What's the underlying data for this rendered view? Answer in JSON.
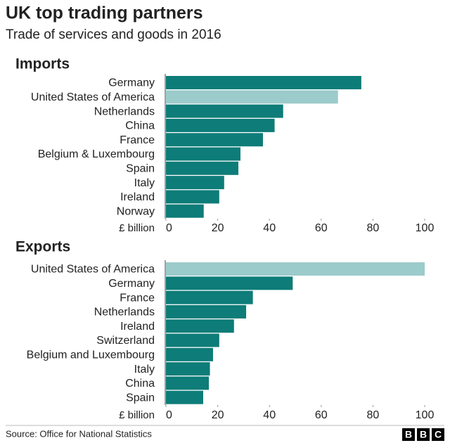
{
  "title": "UK top trading partners",
  "subtitle": "Trade of services and goods in 2016",
  "source": "Source: Office for National Statistics",
  "logo": [
    "B",
    "B",
    "C"
  ],
  "chart_data": [
    {
      "type": "bar",
      "orientation": "horizontal",
      "title": "Imports",
      "categories": [
        "Germany",
        "United States of America",
        "Netherlands",
        "China",
        "France",
        "Belgium & Luxembourg",
        "Spain",
        "Italy",
        "Ireland",
        "Norway"
      ],
      "values": [
        75.5,
        66.5,
        45.3,
        42,
        37.5,
        28.8,
        28,
        22.5,
        20.6,
        14.6
      ],
      "colors": [
        "#0e7c78",
        "#9ccbcb",
        "#0e7c78",
        "#0e7c78",
        "#0e7c78",
        "#0e7c78",
        "#0e7c78",
        "#0e7c78",
        "#0e7c78",
        "#0e7c78"
      ],
      "xlabel": "£ billion",
      "xlim": [
        0,
        100
      ],
      "xticks": [
        0,
        20,
        40,
        60,
        80,
        100
      ]
    },
    {
      "type": "bar",
      "orientation": "horizontal",
      "title": "Exports",
      "categories": [
        "United States of America",
        "Germany",
        "France",
        "Netherlands",
        "Ireland",
        "Switzerland",
        "Belgium and Luxembourg",
        "Italy",
        "China",
        "Spain"
      ],
      "values": [
        100,
        49,
        33.6,
        31,
        26.3,
        20.6,
        18.2,
        17,
        16.6,
        14.4
      ],
      "colors": [
        "#9ccbcb",
        "#0e7c78",
        "#0e7c78",
        "#0e7c78",
        "#0e7c78",
        "#0e7c78",
        "#0e7c78",
        "#0e7c78",
        "#0e7c78",
        "#0e7c78"
      ],
      "xlabel": "£ billion",
      "xlim": [
        0,
        100
      ],
      "xticks": [
        0,
        20,
        40,
        60,
        80,
        100
      ]
    }
  ]
}
